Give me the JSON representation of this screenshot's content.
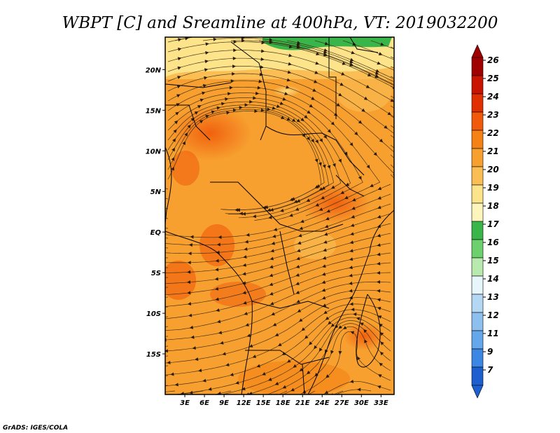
{
  "chart_data": {
    "type": "heatmap",
    "title": "WBPT [C] and Sreamline at 400hPa, VT: 2019032200",
    "variable": "WBPT [C]",
    "level": "400hPa",
    "valid_time": "2019032200",
    "overlay": "streamlines",
    "x_range": [
      0,
      35
    ],
    "y_range": [
      -20,
      24
    ],
    "x_tick_values": [
      3,
      6,
      9,
      12,
      15,
      18,
      21,
      24,
      27,
      30,
      33
    ],
    "x_tick_labels": [
      "3E",
      "6E",
      "9E",
      "12E",
      "15E",
      "18E",
      "21E",
      "24E",
      "27E",
      "30E",
      "33E"
    ],
    "y_tick_values": [
      20,
      15,
      10,
      5,
      0,
      -5,
      -10,
      -15
    ],
    "y_tick_labels": [
      "20N",
      "15N",
      "10N",
      "5N",
      "EQ",
      "5S",
      "10S",
      "15S"
    ],
    "colorbar": {
      "levels": [
        "26",
        "25",
        "24",
        "23",
        "22",
        "21",
        "20",
        "19",
        "18",
        "17",
        "16",
        "15",
        "14",
        "13",
        "12",
        "11",
        "9",
        "7"
      ],
      "colors": [
        "#a00000",
        "#c81400",
        "#e03000",
        "#f05a0a",
        "#f58214",
        "#f7a030",
        "#fabe55",
        "#fde38a",
        "#fdf5bb",
        "#39b54a",
        "#6cd06c",
        "#b8eab0",
        "#e6f6fa",
        "#b4d8f4",
        "#8ec0ef",
        "#64a7ea",
        "#3d87e4",
        "#1e5fcf"
      ]
    }
  },
  "credit": "GrADS: IGES/COLA"
}
